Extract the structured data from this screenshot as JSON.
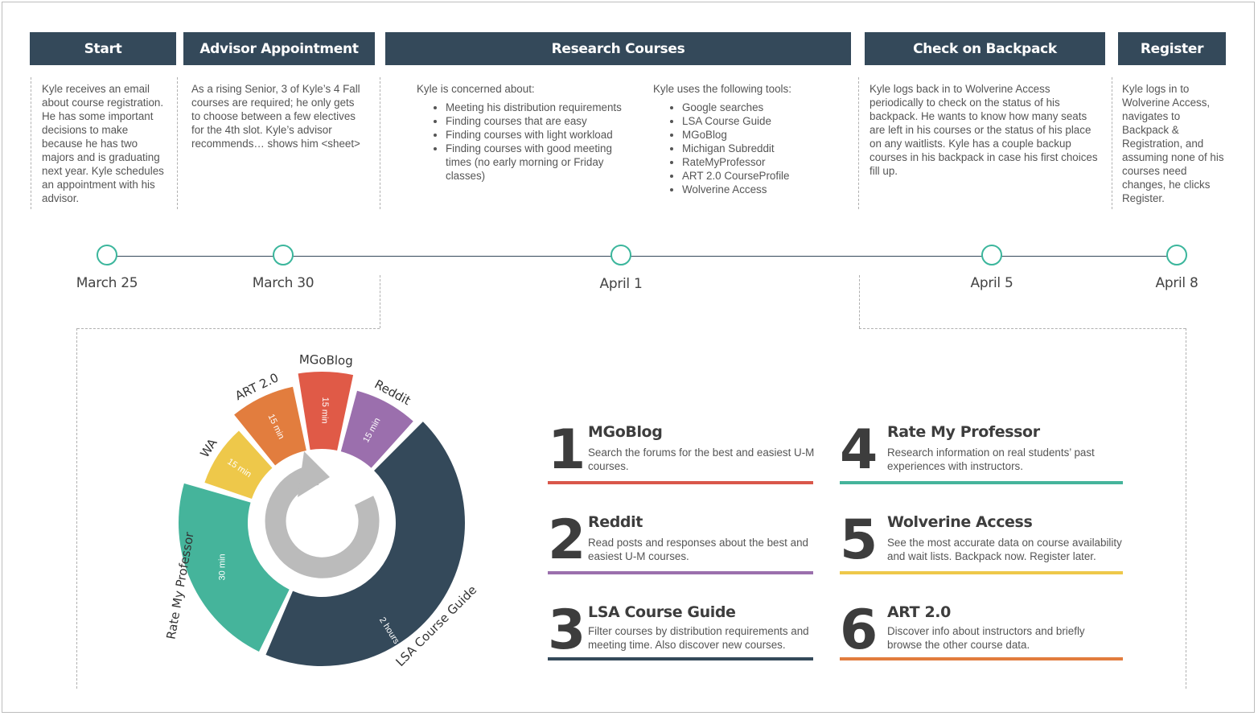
{
  "phases": [
    {
      "title": "Start",
      "text": "Kyle receives an email about course registration. He has some important decisions to make because he has two majors and is graduating next year. Kyle schedules an appointment with his advisor."
    },
    {
      "title": "Advisor Appointment",
      "text": "As a rising Senior, 3 of Kyle’s 4 Fall courses are required; he only gets to choose between a few electives for the 4th slot. Kyle’s advisor recommends… shows him <sheet>"
    },
    {
      "title": "Research Courses",
      "concern_intro": "Kyle is concerned about:",
      "concerns": [
        "Meeting his distribution requirements",
        "Finding courses that are easy",
        "Finding courses with light workload",
        "Finding courses with good meeting times (no early morning or Friday classes)"
      ],
      "tools_intro": "Kyle uses the following tools:",
      "tools": [
        "Google searches",
        "LSA Course Guide",
        "MGoBlog",
        "Michigan Subreddit",
        "RateMyProfessor",
        "ART 2.0 CourseProfile",
        "Wolverine Access"
      ]
    },
    {
      "title": "Check on Backpack",
      "text": "Kyle logs back in to Wolverine Access periodically to check on the status of his backpack. He wants to know how many seats are left in his courses or the status of his place on any waitlists. Kyle has a couple backup courses in his backpack in case his first choices fill up."
    },
    {
      "title": "Register",
      "text": "Kyle logs in to Wolverine Access, navigates to Backpack & Registration, and assuming none of his courses need changes, he clicks Register."
    }
  ],
  "dates": [
    "March 25",
    "March 30",
    "April 1",
    "April 5",
    "April 8"
  ],
  "colors": {
    "header": "#34495a",
    "node": "#3bb69c",
    "red": "#e05a47",
    "purple": "#9b6fad",
    "navy": "#34495a",
    "teal": "#45b49b",
    "yellow": "#eec84a",
    "orange": "#e27d3e"
  },
  "donut": {
    "segments": [
      {
        "label": "Rate My Professor",
        "time": "30 min",
        "color": "#45b49b"
      },
      {
        "label": "WA",
        "time": "15 min",
        "color": "#eec84a"
      },
      {
        "label": "ART 2.0",
        "time": "15 min",
        "color": "#e27d3e"
      },
      {
        "label": "MGoBlog",
        "time": "15 min",
        "color": "#e05a47"
      },
      {
        "label": "Reddit",
        "time": "15 min",
        "color": "#9b6fad"
      },
      {
        "label": "LSA Course Guide",
        "time": "2 hours",
        "color": "#34495a"
      }
    ]
  },
  "tools": [
    {
      "num": "1",
      "title": "MGoBlog",
      "text": "Search the forums for the best and easiest U-M courses.",
      "color": "#d9574a"
    },
    {
      "num": "2",
      "title": "Reddit",
      "text": "Read posts and responses about the best and easiest U-M courses.",
      "color": "#9b6fad"
    },
    {
      "num": "3",
      "title": "LSA Course Guide",
      "text": "Filter courses by distribution requirements and meeting time.  Also discover new courses.",
      "color": "#34495a"
    },
    {
      "num": "4",
      "title": "Rate My Professor",
      "text": "Research information on real students’ past experiences with  instructors.",
      "color": "#45b49b"
    },
    {
      "num": "5",
      "title": "Wolverine Access",
      "text": "See the most accurate data on course availability and wait lists. Backpack now. Register later.",
      "color": "#eec84a"
    },
    {
      "num": "6",
      "title": "ART 2.0",
      "text": "Discover info about instructors and briefly browse the other course data.",
      "color": "#e27d3e"
    }
  ]
}
